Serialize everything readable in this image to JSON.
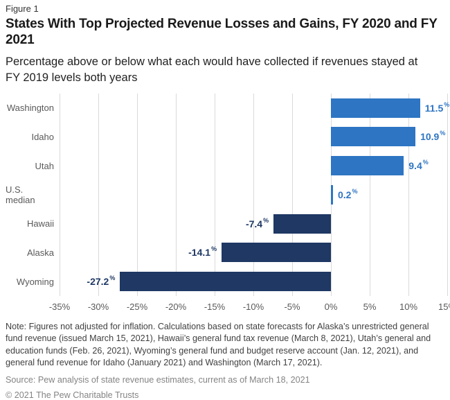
{
  "header": {
    "figure_label": "Figure 1",
    "title": "States With Top Projected Revenue Losses and Gains, FY 2020 and FY 2021",
    "subtitle": "Percentage above or below what each would have collected if revenues stayed at FY 2019 levels both years"
  },
  "chart_data": {
    "type": "bar",
    "orientation": "horizontal",
    "categories": [
      "Washington",
      "Idaho",
      "Utah",
      "U.S. median",
      "Hawaii",
      "Alaska",
      "Wyoming"
    ],
    "values": [
      11.5,
      10.9,
      9.4,
      0.2,
      -7.4,
      -14.1,
      -27.2
    ],
    "value_labels": [
      "11.5",
      "10.9",
      "9.4",
      "0.2",
      "-7.4",
      "-14.1",
      "-27.2"
    ],
    "value_suffix": "%",
    "xlim": [
      -35,
      15
    ],
    "tick_values": [
      -35,
      -30,
      -25,
      -20,
      -15,
      -10,
      -5,
      0,
      5,
      10,
      15
    ],
    "tick_labels": [
      "-35%",
      "-30%",
      "-25%",
      "-20%",
      "-15%",
      "-10%",
      "-5%",
      "0%",
      "5%",
      "10%",
      "15%"
    ],
    "positive_color": "#2E75C3",
    "negative_color": "#1F3864",
    "gridline_color": "#D9D9D9",
    "axis_text_color": "#595959",
    "grid": true,
    "legend": false,
    "title": "States With Top Projected Revenue Losses and Gains, FY 2020 and FY 2021",
    "xlabel": "",
    "ylabel": ""
  },
  "footer": {
    "note": "Note: Figures not adjusted for inflation. Calculations based on state forecasts for Alaska’s unrestricted general fund revenue (issued March 15, 2021), Hawaii’s general fund tax revenue (March 8, 2021), Utah’s general and education funds (Feb. 26, 2021), Wyoming’s general fund and budget reserve account (Jan. 12, 2021), and general fund revenue for Idaho (January 2021) and Washington (March 17, 2021).",
    "source": "Source: Pew analysis of state revenue estimates, current as of March 18, 2021",
    "copyright": "© 2021 The Pew Charitable Trusts"
  }
}
